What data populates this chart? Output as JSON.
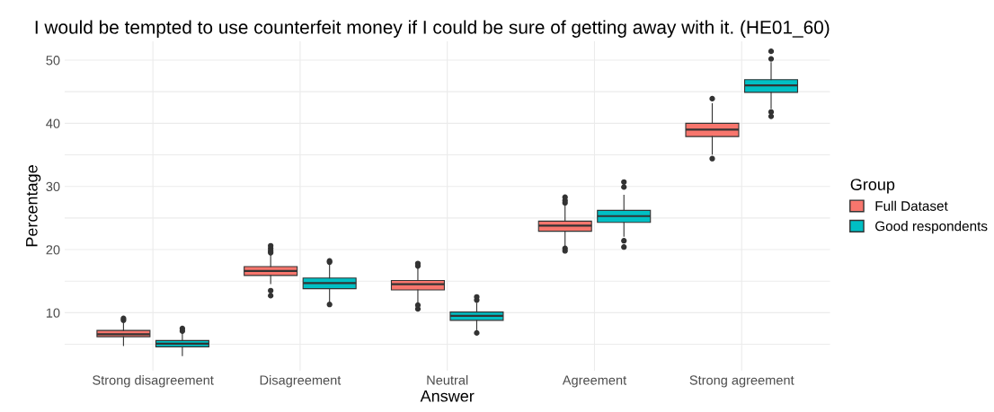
{
  "chart_data": {
    "type": "box",
    "title": "I would be tempted to use counterfeit money if I could be sure of getting away with it. (HE01_60)",
    "xlabel": "Answer",
    "ylabel": "Percentage",
    "legend_title": "Group",
    "legend": "right",
    "grid": true,
    "categories": [
      "Strong disagreement",
      "Disagreement",
      "Neutral",
      "Agreement",
      "Strong agreement"
    ],
    "ylim": [
      0.8,
      53
    ],
    "yticks": [
      {
        "value": 5,
        "label": null
      },
      10,
      {
        "value": 15,
        "label": null
      },
      20,
      {
        "value": 25,
        "label": null
      },
      30,
      {
        "value": 35,
        "label": null
      },
      40,
      {
        "value": 45,
        "label": null
      },
      50
    ],
    "series": [
      {
        "name": "Full Dataset",
        "color": "#f8766d",
        "boxes": [
          {
            "low": 4.8,
            "q1": 6.2,
            "median": 6.6,
            "q3": 7.2,
            "high": 8.3,
            "outliers": [
              8.8,
              9.1
            ]
          },
          {
            "low": 14.6,
            "q1": 15.9,
            "median": 16.6,
            "q3": 17.3,
            "high": 19.2,
            "outliers": [
              19.5,
              19.8,
              20.2,
              20.6,
              13.5,
              12.7
            ]
          },
          {
            "low": 11.5,
            "q1": 13.6,
            "median": 14.5,
            "q3": 15.1,
            "high": 17.1,
            "outliers": [
              17.4,
              17.8,
              11.2,
              10.6
            ]
          },
          {
            "low": 20.6,
            "q1": 22.9,
            "median": 23.8,
            "q3": 24.5,
            "high": 27.0,
            "outliers": [
              27.4,
              27.8,
              28.3,
              20.2,
              19.8
            ]
          },
          {
            "low": 35.1,
            "q1": 37.9,
            "median": 39.0,
            "q3": 40.0,
            "high": 43.1,
            "outliers": [
              43.9,
              34.4
            ]
          }
        ]
      },
      {
        "name": "Good respondents",
        "color": "#00bfc4",
        "boxes": [
          {
            "low": 3.2,
            "q1": 4.6,
            "median": 5.1,
            "q3": 5.6,
            "high": 6.9,
            "outliers": [
              7.1,
              7.5
            ]
          },
          {
            "low": 11.5,
            "q1": 13.8,
            "median": 14.7,
            "q3": 15.5,
            "high": 17.7,
            "outliers": [
              18.0,
              18.2,
              11.3
            ]
          },
          {
            "low": 7.3,
            "q1": 8.8,
            "median": 9.5,
            "q3": 10.1,
            "high": 11.5,
            "outliers": [
              12.0,
              12.5,
              6.8
            ]
          },
          {
            "low": 22.1,
            "q1": 24.3,
            "median": 25.3,
            "q3": 26.2,
            "high": 28.6,
            "outliers": [
              29.9,
              30.7,
              21.4,
              20.4
            ]
          },
          {
            "low": 42.4,
            "q1": 44.9,
            "median": 46.0,
            "q3": 46.9,
            "high": 49.6,
            "outliers": [
              50.2,
              51.4,
              41.8,
              41.1
            ]
          }
        ]
      }
    ]
  }
}
